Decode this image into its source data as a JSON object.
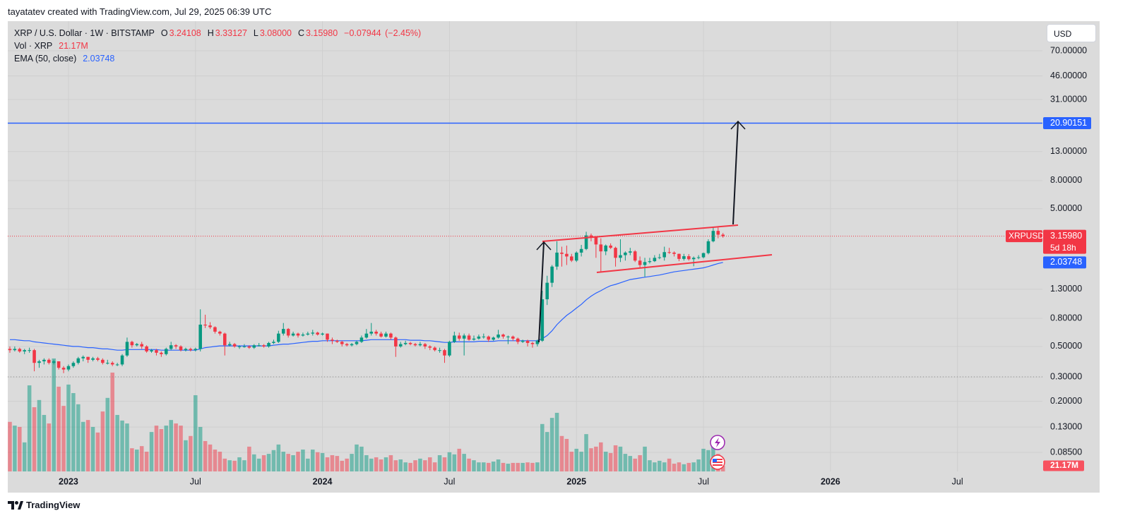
{
  "watermark": "tayatatev created with TradingView.com, Jul 29, 2025 06:39 UTC",
  "footer_brand": "TradingView",
  "chart_data": {
    "type": "candlestick",
    "title": "XRP / U.S. Dollar · 1W · BITSTAMP",
    "currency": "USD",
    "symbol": "XRPUSD",
    "countdown": "5d 18h",
    "ohlc_letters": [
      "O",
      "H",
      "L",
      "C"
    ],
    "last_bar": {
      "open": 3.24108,
      "high": 3.33127,
      "low": {
        "value": 3.08,
        "label": "3.08000"
      },
      "close": {
        "value": 3.1598,
        "label": "3.15980"
      },
      "change": {
        "value": -0.07944,
        "label": "−0.07944"
      },
      "change_percent": {
        "value": -2.45,
        "label": "(−2.45%)"
      }
    },
    "up_color": "#089981",
    "down_color": "#f23645",
    "log_scale": true,
    "grid": true,
    "categories": [
      null,
      null,
      null,
      null,
      null,
      null,
      null,
      null,
      null,
      null,
      null,
      null,
      null,
      null,
      null,
      null,
      null,
      null,
      null,
      null,
      null,
      null,
      null,
      null,
      null,
      null,
      null,
      null,
      null,
      null,
      null,
      null,
      null,
      null,
      null,
      null,
      null,
      null,
      null,
      null,
      null,
      null,
      null,
      null,
      null,
      null,
      null,
      null,
      null,
      null,
      null,
      null,
      null,
      null,
      null,
      null,
      null,
      null,
      null,
      null,
      null,
      null,
      null,
      null,
      null,
      null,
      null,
      null,
      null,
      null,
      null,
      null,
      null,
      null,
      null,
      null,
      null,
      null,
      null,
      null,
      null,
      null,
      null,
      null,
      null,
      null,
      null,
      null,
      null,
      null,
      null,
      null,
      null,
      null,
      null,
      null,
      null,
      null,
      null,
      null,
      null,
      null,
      null,
      null,
      null,
      null,
      null,
      null,
      null,
      null,
      null,
      null,
      null,
      null,
      null,
      null,
      null,
      null,
      null,
      null,
      null,
      null,
      null,
      null,
      null,
      null,
      null,
      null,
      null,
      null,
      null,
      null,
      null,
      null,
      null,
      null,
      null,
      null,
      null,
      null,
      null,
      null,
      null,
      null,
      null,
      null,
      null
    ],
    "ohlc": [
      [
        0.48,
        0.5,
        0.45,
        0.47
      ],
      [
        0.47,
        0.5,
        0.46,
        0.48
      ],
      [
        0.48,
        0.49,
        0.45,
        0.46
      ],
      [
        0.46,
        0.48,
        0.44,
        0.47
      ],
      [
        0.47,
        0.49,
        0.45,
        0.47
      ],
      [
        0.47,
        0.48,
        0.33,
        0.38
      ],
      [
        0.38,
        0.4,
        0.35,
        0.39
      ],
      [
        0.39,
        0.41,
        0.37,
        0.4
      ],
      [
        0.4,
        0.41,
        0.37,
        0.38
      ],
      [
        0.38,
        0.4,
        0.37,
        0.39
      ],
      [
        0.39,
        0.39,
        0.34,
        0.35
      ],
      [
        0.35,
        0.36,
        0.32,
        0.34
      ],
      [
        0.34,
        0.37,
        0.33,
        0.36
      ],
      [
        0.36,
        0.39,
        0.35,
        0.38
      ],
      [
        0.38,
        0.42,
        0.37,
        0.41
      ],
      [
        0.41,
        0.43,
        0.39,
        0.42
      ],
      [
        0.42,
        0.42,
        0.38,
        0.4
      ],
      [
        0.4,
        0.42,
        0.39,
        0.41
      ],
      [
        0.41,
        0.42,
        0.39,
        0.4
      ],
      [
        0.4,
        0.41,
        0.37,
        0.38
      ],
      [
        0.38,
        0.4,
        0.37,
        0.38
      ],
      [
        0.38,
        0.39,
        0.36,
        0.37
      ],
      [
        0.37,
        0.38,
        0.36,
        0.37
      ],
      [
        0.37,
        0.44,
        0.36,
        0.43
      ],
      [
        0.43,
        0.58,
        0.42,
        0.54
      ],
      [
        0.54,
        0.55,
        0.49,
        0.51
      ],
      [
        0.51,
        0.53,
        0.5,
        0.52
      ],
      [
        0.52,
        0.54,
        0.48,
        0.5
      ],
      [
        0.5,
        0.51,
        0.45,
        0.46
      ],
      [
        0.46,
        0.48,
        0.45,
        0.47
      ],
      [
        0.47,
        0.48,
        0.43,
        0.45
      ],
      [
        0.45,
        0.46,
        0.42,
        0.44
      ],
      [
        0.44,
        0.49,
        0.43,
        0.48
      ],
      [
        0.48,
        0.54,
        0.47,
        0.51
      ],
      [
        0.51,
        0.52,
        0.48,
        0.5
      ],
      [
        0.5,
        0.51,
        0.46,
        0.47
      ],
      [
        0.47,
        0.49,
        0.46,
        0.48
      ],
      [
        0.48,
        0.49,
        0.46,
        0.47
      ],
      [
        0.47,
        0.49,
        0.46,
        0.48
      ],
      [
        0.48,
        0.93,
        0.46,
        0.72
      ],
      [
        0.72,
        0.85,
        0.68,
        0.71
      ],
      [
        0.71,
        0.75,
        0.67,
        0.69
      ],
      [
        0.69,
        0.7,
        0.62,
        0.64
      ],
      [
        0.64,
        0.65,
        0.6,
        0.62
      ],
      [
        0.62,
        0.63,
        0.43,
        0.51
      ],
      [
        0.51,
        0.54,
        0.5,
        0.52
      ],
      [
        0.52,
        0.53,
        0.49,
        0.5
      ],
      [
        0.5,
        0.51,
        0.48,
        0.5
      ],
      [
        0.5,
        0.52,
        0.49,
        0.5
      ],
      [
        0.5,
        0.51,
        0.48,
        0.49
      ],
      [
        0.49,
        0.52,
        0.48,
        0.51
      ],
      [
        0.51,
        0.53,
        0.5,
        0.51
      ],
      [
        0.51,
        0.52,
        0.49,
        0.5
      ],
      [
        0.5,
        0.54,
        0.49,
        0.53
      ],
      [
        0.53,
        0.56,
        0.52,
        0.54
      ],
      [
        0.54,
        0.65,
        0.53,
        0.62
      ],
      [
        0.62,
        0.74,
        0.6,
        0.67
      ],
      [
        0.67,
        0.68,
        0.58,
        0.6
      ],
      [
        0.6,
        0.64,
        0.59,
        0.62
      ],
      [
        0.62,
        0.63,
        0.58,
        0.6
      ],
      [
        0.6,
        0.63,
        0.59,
        0.61
      ],
      [
        0.61,
        0.64,
        0.6,
        0.62
      ],
      [
        0.62,
        0.66,
        0.6,
        0.63
      ],
      [
        0.63,
        0.64,
        0.6,
        0.61
      ],
      [
        0.61,
        0.63,
        0.6,
        0.62
      ],
      [
        0.62,
        0.62,
        0.54,
        0.56
      ],
      [
        0.56,
        0.58,
        0.52,
        0.55
      ],
      [
        0.55,
        0.56,
        0.53,
        0.54
      ],
      [
        0.54,
        0.55,
        0.5,
        0.52
      ],
      [
        0.52,
        0.53,
        0.5,
        0.51
      ],
      [
        0.51,
        0.53,
        0.5,
        0.52
      ],
      [
        0.52,
        0.55,
        0.51,
        0.54
      ],
      [
        0.54,
        0.6,
        0.53,
        0.58
      ],
      [
        0.58,
        0.67,
        0.57,
        0.62
      ],
      [
        0.62,
        0.74,
        0.6,
        0.64
      ],
      [
        0.64,
        0.66,
        0.6,
        0.62
      ],
      [
        0.62,
        0.64,
        0.58,
        0.59
      ],
      [
        0.59,
        0.64,
        0.58,
        0.62
      ],
      [
        0.62,
        0.63,
        0.56,
        0.58
      ],
      [
        0.58,
        0.59,
        0.42,
        0.5
      ],
      [
        0.5,
        0.54,
        0.49,
        0.52
      ],
      [
        0.52,
        0.55,
        0.51,
        0.53
      ],
      [
        0.53,
        0.54,
        0.51,
        0.52
      ],
      [
        0.52,
        0.53,
        0.5,
        0.51
      ],
      [
        0.51,
        0.54,
        0.5,
        0.52
      ],
      [
        0.52,
        0.53,
        0.48,
        0.5
      ],
      [
        0.5,
        0.51,
        0.47,
        0.49
      ],
      [
        0.49,
        0.5,
        0.46,
        0.47
      ],
      [
        0.47,
        0.49,
        0.45,
        0.47
      ],
      [
        0.47,
        0.48,
        0.38,
        0.43
      ],
      [
        0.43,
        0.55,
        0.42,
        0.54
      ],
      [
        0.54,
        0.64,
        0.53,
        0.6
      ],
      [
        0.6,
        0.63,
        0.55,
        0.57
      ],
      [
        0.57,
        0.62,
        0.43,
        0.6
      ],
      [
        0.6,
        0.62,
        0.55,
        0.56
      ],
      [
        0.56,
        0.6,
        0.55,
        0.57
      ],
      [
        0.57,
        0.61,
        0.56,
        0.59
      ],
      [
        0.59,
        0.62,
        0.57,
        0.59
      ],
      [
        0.59,
        0.6,
        0.54,
        0.56
      ],
      [
        0.56,
        0.59,
        0.55,
        0.58
      ],
      [
        0.58,
        0.66,
        0.57,
        0.61
      ],
      [
        0.61,
        0.62,
        0.57,
        0.59
      ],
      [
        0.59,
        0.6,
        0.52,
        0.59
      ],
      [
        0.59,
        0.6,
        0.55,
        0.57
      ],
      [
        0.57,
        0.58,
        0.52,
        0.54
      ],
      [
        0.54,
        0.56,
        0.53,
        0.55
      ],
      [
        0.55,
        0.56,
        0.5,
        0.53
      ],
      [
        0.53,
        0.54,
        0.49,
        0.52
      ],
      [
        0.52,
        0.56,
        0.5,
        0.55
      ],
      [
        0.55,
        1.27,
        0.54,
        1.1
      ],
      [
        1.1,
        1.63,
        1.0,
        1.45
      ],
      [
        1.45,
        1.95,
        1.35,
        1.9
      ],
      [
        1.9,
        2.9,
        1.8,
        2.4
      ],
      [
        2.4,
        2.65,
        1.9,
        2.35
      ],
      [
        2.35,
        2.7,
        1.95,
        2.25
      ],
      [
        2.25,
        2.35,
        2.05,
        2.1
      ],
      [
        2.1,
        2.45,
        2.05,
        2.4
      ],
      [
        2.4,
        2.73,
        2.25,
        2.55
      ],
      [
        2.55,
        3.4,
        2.5,
        3.2
      ],
      [
        3.2,
        3.3,
        2.9,
        3.1
      ],
      [
        3.1,
        3.15,
        2.2,
        2.75
      ],
      [
        2.75,
        3.05,
        1.75,
        2.45
      ],
      [
        2.45,
        2.75,
        2.3,
        2.7
      ],
      [
        2.7,
        2.8,
        2.55,
        2.6
      ],
      [
        2.6,
        2.65,
        1.9,
        2.2
      ],
      [
        2.2,
        3.0,
        2.05,
        2.3
      ],
      [
        2.3,
        2.45,
        2.1,
        2.4
      ],
      [
        2.4,
        2.6,
        2.3,
        2.45
      ],
      [
        2.45,
        2.5,
        2.05,
        2.1
      ],
      [
        2.1,
        2.25,
        1.85,
        1.95
      ],
      [
        1.95,
        2.2,
        1.6,
        2.05
      ],
      [
        2.05,
        2.2,
        2.0,
        2.08
      ],
      [
        2.08,
        2.3,
        2.05,
        2.2
      ],
      [
        2.2,
        2.35,
        2.15,
        2.22
      ],
      [
        2.22,
        2.65,
        2.1,
        2.42
      ],
      [
        2.42,
        2.6,
        2.35,
        2.4
      ],
      [
        2.4,
        2.45,
        2.25,
        2.35
      ],
      [
        2.35,
        2.36,
        2.08,
        2.16
      ],
      [
        2.16,
        2.35,
        2.1,
        2.26
      ],
      [
        2.26,
        2.34,
        2.1,
        2.15
      ],
      [
        2.15,
        2.25,
        1.91,
        2.2
      ],
      [
        2.2,
        2.3,
        2.15,
        2.22
      ],
      [
        2.22,
        2.4,
        2.18,
        2.38
      ],
      [
        2.38,
        3.0,
        2.33,
        2.9
      ],
      [
        2.9,
        3.66,
        2.85,
        3.45
      ],
      [
        3.45,
        3.65,
        3.05,
        3.23924
      ],
      [
        3.24108,
        3.33127,
        3.08,
        3.1598
      ]
    ],
    "ema": {
      "name": "EMA (50, close)",
      "color": "#2962ff",
      "values": [
        0.56,
        0.56,
        0.555,
        0.55,
        0.55,
        0.54,
        0.535,
        0.53,
        0.525,
        0.52,
        0.515,
        0.51,
        0.505,
        0.5,
        0.5,
        0.495,
        0.49,
        0.49,
        0.485,
        0.48,
        0.48,
        0.475,
        0.47,
        0.47,
        0.475,
        0.475,
        0.475,
        0.475,
        0.475,
        0.475,
        0.475,
        0.47,
        0.47,
        0.47,
        0.47,
        0.47,
        0.47,
        0.47,
        0.47,
        0.48,
        0.49,
        0.495,
        0.5,
        0.505,
        0.505,
        0.505,
        0.505,
        0.505,
        0.505,
        0.505,
        0.505,
        0.505,
        0.505,
        0.505,
        0.51,
        0.515,
        0.52,
        0.52,
        0.525,
        0.53,
        0.535,
        0.54,
        0.545,
        0.545,
        0.55,
        0.55,
        0.55,
        0.55,
        0.55,
        0.55,
        0.55,
        0.55,
        0.55,
        0.555,
        0.56,
        0.56,
        0.56,
        0.56,
        0.56,
        0.56,
        0.56,
        0.56,
        0.555,
        0.555,
        0.555,
        0.55,
        0.55,
        0.545,
        0.54,
        0.535,
        0.535,
        0.54,
        0.54,
        0.54,
        0.54,
        0.54,
        0.545,
        0.545,
        0.545,
        0.545,
        0.55,
        0.55,
        0.55,
        0.55,
        0.55,
        0.55,
        0.55,
        0.55,
        0.55,
        0.57,
        0.6,
        0.65,
        0.72,
        0.78,
        0.84,
        0.89,
        0.95,
        1.01,
        1.09,
        1.16,
        1.22,
        1.27,
        1.33,
        1.38,
        1.41,
        1.45,
        1.49,
        1.53,
        1.55,
        1.57,
        1.59,
        1.61,
        1.63,
        1.65,
        1.68,
        1.71,
        1.74,
        1.76,
        1.78,
        1.8,
        1.82,
        1.84,
        1.86,
        1.9,
        1.95,
        2.0,
        2.03748
      ]
    },
    "volume": {
      "name": "Vol · XRP",
      "last_label": "21.17M",
      "vlim": [
        0,
        1690
      ],
      "values": [
        186,
        172,
        167,
        109,
        323,
        241,
        268,
        212,
        180,
        424,
        318,
        246,
        326,
        294,
        252,
        186,
        193,
        167,
        146,
        225,
        276,
        371,
        212,
        191,
        180,
        87,
        82,
        95,
        74,
        148,
        172,
        159,
        172,
        193,
        180,
        172,
        117,
        133,
        286,
        167,
        114,
        101,
        82,
        74,
        48,
        42,
        40,
        53,
        42,
        93,
        64,
        48,
        61,
        66,
        80,
        101,
        74,
        66,
        61,
        74,
        82,
        48,
        82,
        72,
        69,
        53,
        61,
        58,
        40,
        48,
        66,
        101,
        93,
        61,
        48,
        53,
        45,
        53,
        61,
        42,
        45,
        34,
        32,
        42,
        48,
        42,
        53,
        34,
        61,
        53,
        72,
        64,
        85,
        66,
        48,
        42,
        34,
        34,
        32,
        37,
        45,
        32,
        29,
        32,
        32,
        32,
        34,
        32,
        34,
        178,
        148,
        201,
        220,
        133,
        122,
        74,
        85,
        74,
        140,
        87,
        93,
        109,
        74,
        69,
        98,
        93,
        66,
        58,
        48,
        61,
        93,
        42,
        34,
        40,
        34,
        48,
        29,
        34,
        27,
        32,
        34,
        45,
        85,
        80,
        101,
        66,
        21.17
      ]
    },
    "levels": [
      {
        "value": 20.90151,
        "color": "#2962ff"
      }
    ],
    "xlim": [
      -0.43,
      211.4
    ],
    "xticks": [
      {
        "value": 12,
        "label": "2023"
      },
      {
        "value": 38,
        "label": "Jul"
      },
      {
        "value": 64,
        "label": "2024"
      },
      {
        "value": 90,
        "label": "Jul"
      },
      {
        "value": 116,
        "label": "2025"
      },
      {
        "value": 142,
        "label": "Jul"
      },
      {
        "value": 168,
        "label": "2026"
      },
      {
        "value": 194,
        "label": "Jul"
      }
    ],
    "ylim": [
      0.0619,
      114.9
    ],
    "yticks": [
      {
        "value": 70,
        "label": "70.00000"
      },
      {
        "value": 46,
        "label": "46.00000"
      },
      {
        "value": 31,
        "label": "31.00000"
      },
      {
        "value": 13,
        "label": "13.00000"
      },
      {
        "value": 8,
        "label": "8.00000"
      },
      {
        "value": 5,
        "label": "5.00000"
      },
      {
        "value": 1.3,
        "label": "1.30000"
      },
      {
        "value": 0.8,
        "label": "0.80000"
      },
      {
        "value": 0.5,
        "label": "0.50000"
      },
      {
        "value": 0.3,
        "label": "0.30000"
      },
      {
        "value": 0.2,
        "label": "0.20000"
      },
      {
        "value": 0.13,
        "label": "0.13000"
      },
      {
        "value": 0.085,
        "label": "0.08500"
      }
    ]
  }
}
